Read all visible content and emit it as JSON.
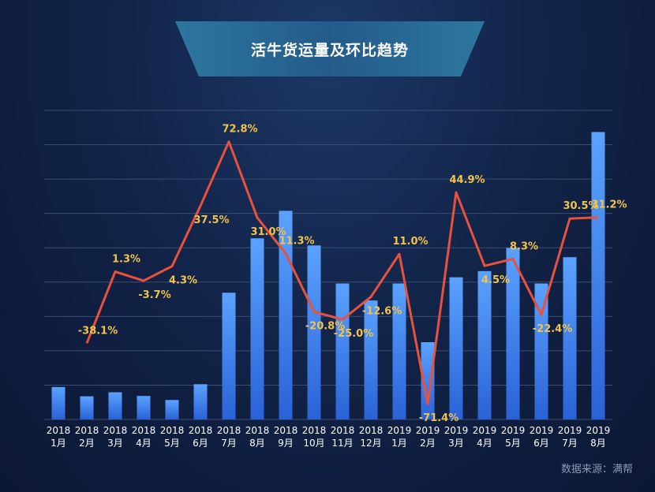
{
  "title": "活牛货运量及环比趋势",
  "source": "数据来源：满帮",
  "colors": {
    "bar_top": "#5ba2ff",
    "bar_bottom": "#2a62d6",
    "line": "#e8523c",
    "label": "#f2c34a",
    "grid": "#3a4d72",
    "tick": "#ffffff"
  },
  "chart_data": {
    "type": "bar+line",
    "categories": [
      "2018\n1月",
      "2018\n2月",
      "2018\n3月",
      "2018\n4月",
      "2018\n5月",
      "2018\n6月",
      "2018\n7月",
      "2018\n8月",
      "2018\n9月",
      "2018\n10月",
      "2018\n11月",
      "2018\n12月",
      "2019\n1月",
      "2019\n2月",
      "2019\n3月",
      "2019\n4月",
      "2019\n5月",
      "2019\n6月",
      "2019\n7月",
      "2019\n8月"
    ],
    "bar_series": {
      "values": [
        10.5,
        7.5,
        8.8,
        7.6,
        6.3,
        11.4,
        41.0,
        58.6,
        67.5,
        56.3,
        44.0,
        38.5,
        44.0,
        25.0,
        46.0,
        48.0,
        55.5,
        44.0,
        52.5,
        93.0
      ],
      "ylim": [
        0,
        100
      ]
    },
    "line_series": {
      "values": [
        null,
        -38.1,
        1.3,
        -3.7,
        4.3,
        37.5,
        72.8,
        31.0,
        11.3,
        -20.8,
        -25.0,
        -12.6,
        11.0,
        -71.4,
        44.9,
        4.5,
        8.3,
        -22.4,
        30.5,
        31.2
      ],
      "labels": [
        "",
        "-38.1%",
        "1.3%",
        "-3.7%",
        "4.3%",
        "37.5%",
        "72.8%",
        "31.0%",
        "11.3%",
        "-20.8%",
        "-25.0%",
        "-12.6%",
        "11.0%",
        "-71.4%",
        "44.9%",
        "4.5%",
        "8.3%",
        "-22.4%",
        "30.5%",
        "31.2%"
      ],
      "ylim": [
        -80,
        90
      ]
    },
    "grid": true,
    "legend": "none"
  }
}
